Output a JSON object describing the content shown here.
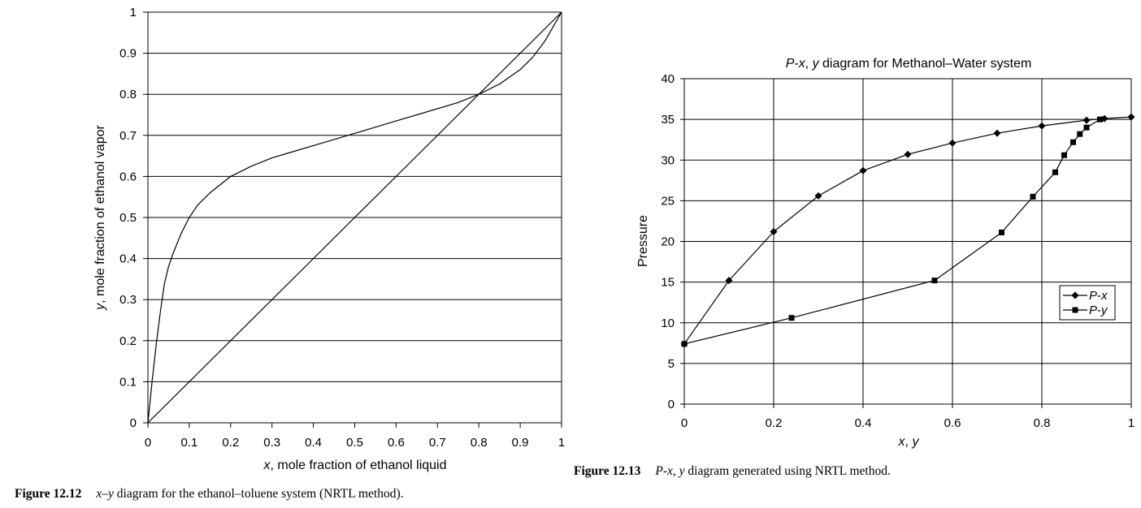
{
  "figures": [
    {
      "label": "Figure 12.12",
      "caption": "x–y diagram for the ethanol–toluene system (NRTL method).",
      "caption_prefix": "x",
      "caption_dash": "–",
      "caption_y": "y",
      "caption_rest": " diagram for the ethanol–toluene system (NRTL method)."
    },
    {
      "label": "Figure 12.13",
      "caption_prefix": "P",
      "caption_mid": "-",
      "caption_x": "x",
      "caption_comma": ", ",
      "caption_y": "y",
      "caption_rest": " diagram generated using NRTL method."
    }
  ],
  "chart_data": [
    {
      "type": "line",
      "title": "",
      "xlabel_var": "x",
      "xlabel_rest": ", mole fraction of ethanol liquid",
      "ylabel_var": "y",
      "ylabel_rest": ", mole fraction of ethanol vapor",
      "xlim": [
        0,
        1
      ],
      "ylim": [
        0,
        1
      ],
      "xticks": [
        "0",
        "0.1",
        "0.2",
        "0.3",
        "0.4",
        "0.5",
        "0.6",
        "0.7",
        "0.8",
        "0.9",
        "1"
      ],
      "yticks": [
        "0",
        "0.1",
        "0.2",
        "0.3",
        "0.4",
        "0.5",
        "0.6",
        "0.7",
        "0.8",
        "0.9",
        "1"
      ],
      "grid": "horizontal",
      "series": [
        {
          "x": [
            0,
            0.01,
            0.02,
            0.03,
            0.04,
            0.05,
            0.06,
            0.08,
            0.1,
            0.12,
            0.15,
            0.2,
            0.25,
            0.3,
            0.35,
            0.4,
            0.45,
            0.5,
            0.55,
            0.6,
            0.65,
            0.7,
            0.75,
            0.8,
            0.85,
            0.9,
            0.93,
            0.96,
            0.98,
            1.0
          ],
          "y": [
            0,
            0.1,
            0.19,
            0.27,
            0.34,
            0.38,
            0.41,
            0.46,
            0.5,
            0.53,
            0.56,
            0.6,
            0.625,
            0.645,
            0.66,
            0.675,
            0.69,
            0.705,
            0.72,
            0.735,
            0.75,
            0.765,
            0.78,
            0.8,
            0.825,
            0.86,
            0.89,
            0.93,
            0.965,
            1.0
          ]
        },
        {
          "x": [
            0,
            1
          ],
          "y": [
            0,
            1
          ]
        }
      ]
    },
    {
      "type": "line",
      "title_P": "P",
      "title_dash": "-",
      "title_x": "x",
      "title_comma": ", ",
      "title_y": "y",
      "title_rest": " diagram for Methanol–Water system",
      "xlabel_x": "x",
      "xlabel_comma": ", ",
      "xlabel_y": "y",
      "ylabel": "Pressure",
      "xlim": [
        0,
        1
      ],
      "ylim": [
        0,
        40
      ],
      "xticks": [
        "0",
        "0.2",
        "0.4",
        "0.6",
        "0.8",
        "1"
      ],
      "yticks": [
        "0",
        "5",
        "10",
        "15",
        "20",
        "25",
        "30",
        "35",
        "40"
      ],
      "grid": "both",
      "legend_position": "right",
      "series": [
        {
          "name_P": "P",
          "name_dash": "-",
          "name_var": "x",
          "marker": "diamond",
          "x": [
            0,
            0.1,
            0.2,
            0.3,
            0.4,
            0.5,
            0.6,
            0.7,
            0.8,
            0.9,
            0.94,
            1.0
          ],
          "y": [
            7.4,
            15.2,
            21.2,
            25.6,
            28.7,
            30.7,
            32.1,
            33.3,
            34.2,
            34.9,
            35.1,
            35.3
          ]
        },
        {
          "name_P": "P",
          "name_dash": "-",
          "name_var": "y",
          "marker": "square",
          "x": [
            0,
            0.24,
            0.56,
            0.71,
            0.78,
            0.83,
            0.85,
            0.87,
            0.885,
            0.9,
            0.93
          ],
          "y": [
            7.4,
            10.6,
            15.2,
            21.1,
            25.5,
            28.5,
            30.6,
            32.2,
            33.2,
            34.0,
            35.0
          ]
        }
      ]
    }
  ]
}
